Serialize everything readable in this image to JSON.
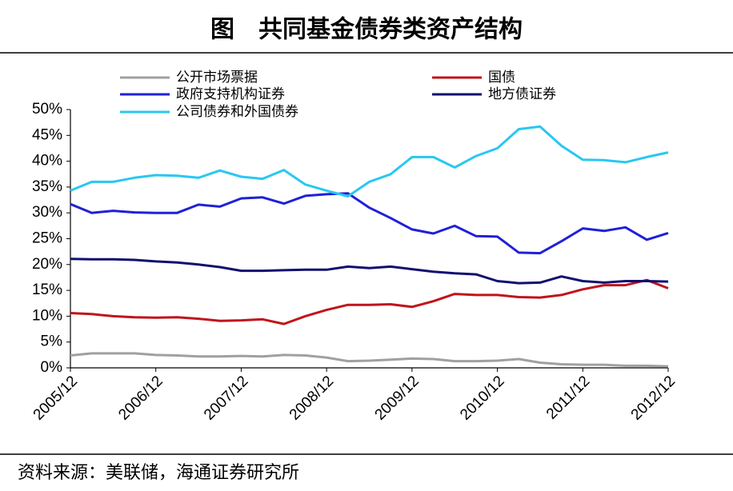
{
  "chart_data": {
    "type": "line",
    "title": "图　共同基金债券类资产结构",
    "source": "资料来源：美联储，海通证券研究所",
    "categories": [
      "2005/12",
      null,
      null,
      null,
      "2006/12",
      null,
      null,
      null,
      "2007/12",
      null,
      null,
      null,
      "2008/12",
      null,
      null,
      null,
      "2009/12",
      null,
      null,
      null,
      "2010/12",
      null,
      null,
      null,
      "2011/12",
      null,
      null,
      null,
      "2012/12"
    ],
    "ylim": [
      0,
      50
    ],
    "yticks": [
      {
        "value": 0,
        "label": "0%"
      },
      {
        "value": 5,
        "label": "5%"
      },
      {
        "value": 10,
        "label": "10%"
      },
      {
        "value": 15,
        "label": "15%"
      },
      {
        "value": 20,
        "label": "20%"
      },
      {
        "value": 25,
        "label": "25%"
      },
      {
        "value": 30,
        "label": "30%"
      },
      {
        "value": 35,
        "label": "35%"
      },
      {
        "value": 40,
        "label": "40%"
      },
      {
        "value": 45,
        "label": "45%"
      },
      {
        "value": 50,
        "label": "50%"
      }
    ],
    "series": [
      {
        "name": "公开市场票据",
        "color": "#a0a0a0",
        "values": [
          2.4,
          2.8,
          2.8,
          2.8,
          2.5,
          2.4,
          2.2,
          2.2,
          2.3,
          2.2,
          2.5,
          2.4,
          2.0,
          1.3,
          1.4,
          1.6,
          1.8,
          1.7,
          1.3,
          1.3,
          1.4,
          1.7,
          1.0,
          0.7,
          0.6,
          0.6,
          0.4,
          0.4,
          0.3
        ]
      },
      {
        "name": "国债",
        "color": "#c0141c",
        "values": [
          10.6,
          10.4,
          10,
          9.8,
          9.7,
          9.8,
          9.5,
          9.1,
          9.2,
          9.4,
          8.5,
          10,
          11.2,
          12.2,
          12.2,
          12.3,
          11.8,
          12.9,
          14.3,
          14.1,
          14.1,
          13.7,
          13.6,
          14.1,
          15.2,
          16,
          16,
          17,
          15.4
        ]
      },
      {
        "name": "政府支持机构证券",
        "color": "#2020d8",
        "values": [
          31.7,
          30,
          30.4,
          30.1,
          30,
          30,
          31.6,
          31.2,
          32.8,
          33,
          31.8,
          33.3,
          33.6,
          33.8,
          31,
          29,
          26.8,
          26,
          27.5,
          25.5,
          25.4,
          22.3,
          22.2,
          24.5,
          27,
          26.5,
          27.2,
          24.8,
          26.1
        ]
      },
      {
        "name": "地方债证券",
        "color": "#101070",
        "values": [
          21.1,
          21,
          21,
          20.9,
          20.6,
          20.4,
          20,
          19.5,
          18.8,
          18.8,
          18.9,
          19,
          19,
          19.6,
          19.3,
          19.6,
          19.1,
          18.6,
          18.3,
          18.1,
          16.8,
          16.4,
          16.5,
          17.7,
          16.8,
          16.5,
          16.8,
          16.8,
          16.7
        ]
      },
      {
        "name": "公司债券和外国债券",
        "color": "#28c8f0",
        "values": [
          34.3,
          36,
          36,
          36.8,
          37.3,
          37.2,
          36.8,
          38.2,
          37,
          36.6,
          38.3,
          35.5,
          34.3,
          33.2,
          36,
          37.5,
          40.8,
          40.8,
          38.8,
          41,
          42.5,
          46.2,
          46.7,
          43,
          40.3,
          40.2,
          39.8,
          40.8,
          41.7
        ]
      }
    ]
  }
}
